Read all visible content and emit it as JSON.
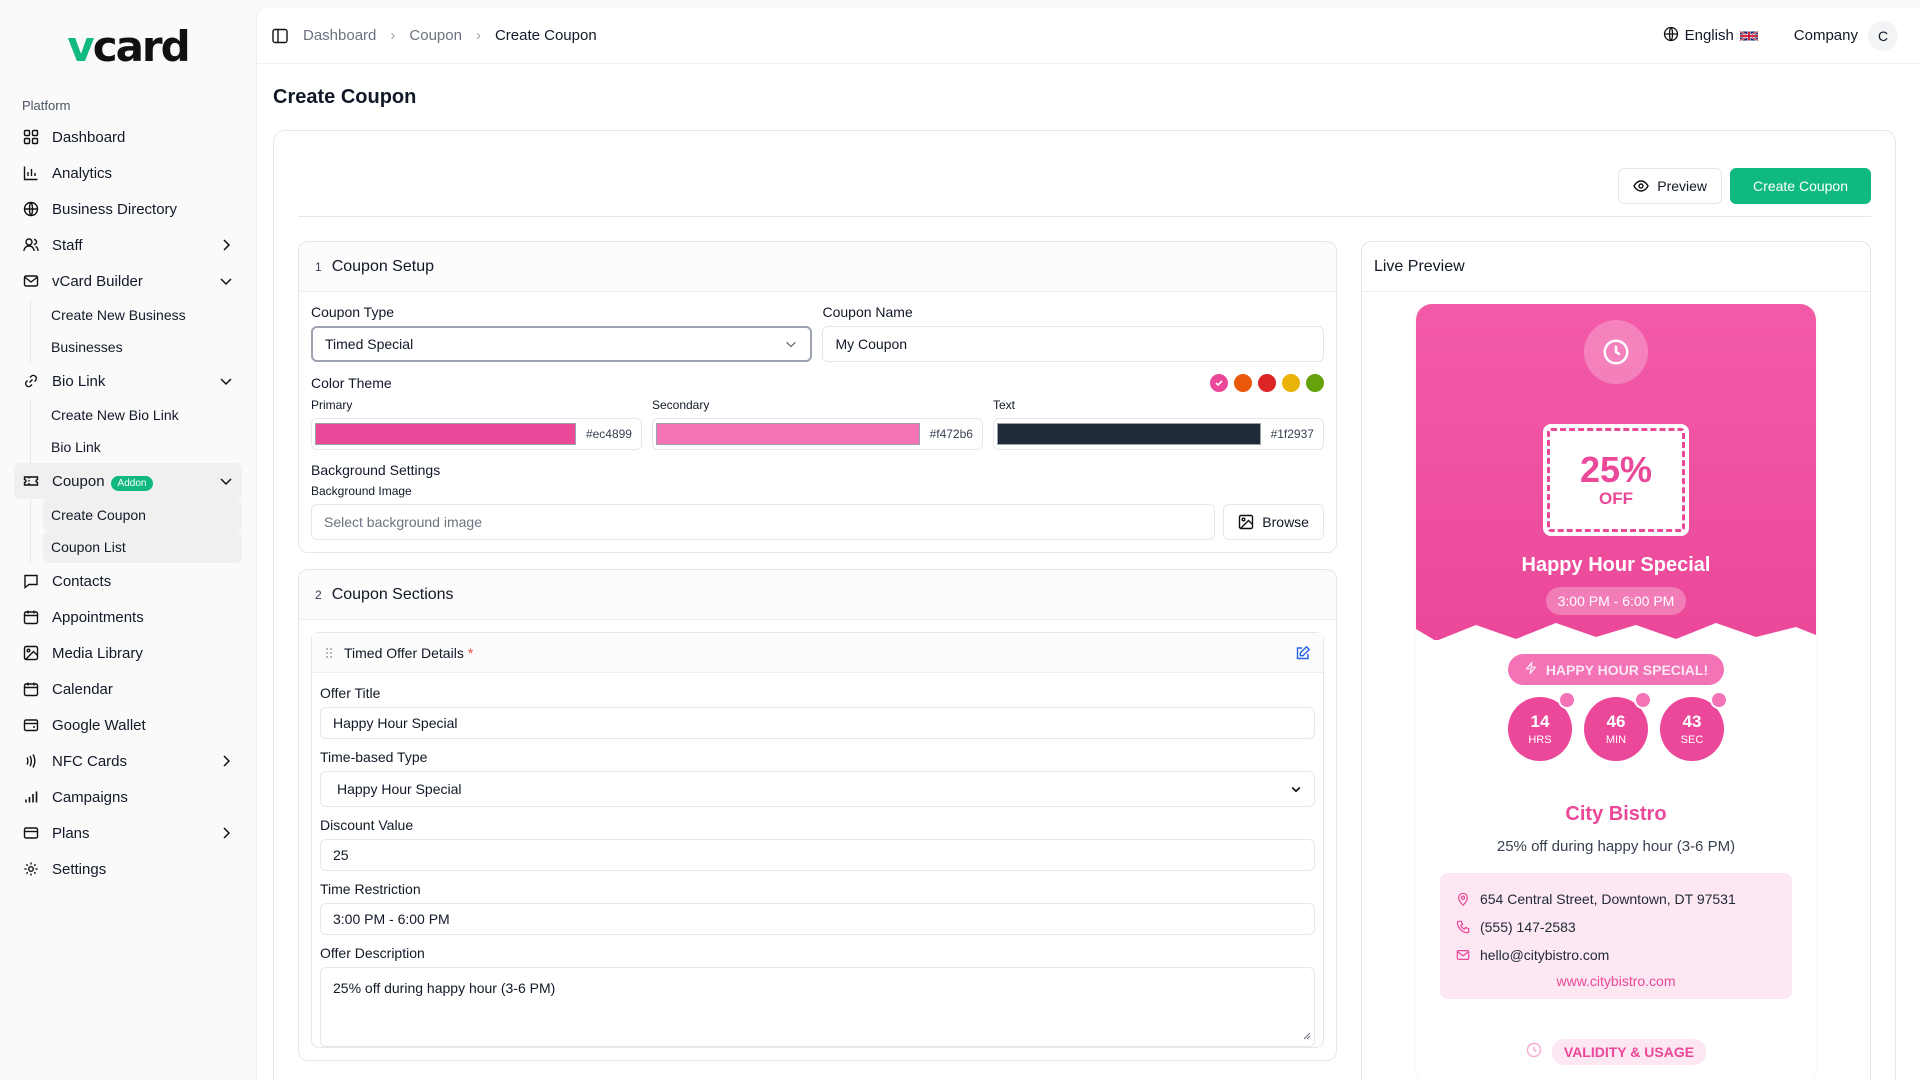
{
  "brand": {
    "logo_v": "v",
    "logo_rest": "card",
    "accent": "#10b981"
  },
  "sidebar": {
    "section_label": "Platform",
    "items": [
      {
        "label": "Dashboard",
        "icon": "grid-icon"
      },
      {
        "label": "Analytics",
        "icon": "bar-chart-icon"
      },
      {
        "label": "Business Directory",
        "icon": "globe-icon"
      },
      {
        "label": "Staff",
        "icon": "users-icon"
      },
      {
        "label": "vCard Builder",
        "icon": "mail-icon"
      },
      {
        "label": "Bio Link",
        "icon": "link-icon"
      },
      {
        "label": "Coupon",
        "icon": "ticket-icon",
        "badge": "Addon"
      },
      {
        "label": "Contacts",
        "icon": "message-icon"
      },
      {
        "label": "Appointments",
        "icon": "calendar-icon"
      },
      {
        "label": "Media Library",
        "icon": "image-icon"
      },
      {
        "label": "Calendar",
        "icon": "calendar-icon"
      },
      {
        "label": "Google Wallet",
        "icon": "wallet-icon"
      },
      {
        "label": "NFC Cards",
        "icon": "nfc-icon"
      },
      {
        "label": "Campaigns",
        "icon": "signal-icon"
      },
      {
        "label": "Plans",
        "icon": "card-icon"
      },
      {
        "label": "Settings",
        "icon": "gear-icon"
      }
    ],
    "vcard_sub": [
      "Create New Business",
      "Businesses"
    ],
    "biolink_sub": [
      "Create New Bio Link",
      "Bio Link"
    ],
    "coupon_sub": [
      "Create Coupon",
      "Coupon List"
    ]
  },
  "topbar": {
    "breadcrumbs": [
      "Dashboard",
      "Coupon",
      "Create Coupon"
    ],
    "language": "English",
    "company": "Company",
    "avatar_initial": "C"
  },
  "page": {
    "title": "Create Coupon"
  },
  "actions": {
    "preview": "Preview",
    "create": "Create Coupon"
  },
  "setup": {
    "step": "1",
    "title": "Coupon Setup",
    "type_label": "Coupon Type",
    "type_value": "Timed Special",
    "name_label": "Coupon Name",
    "name_value": "My Coupon",
    "theme_label": "Color Theme",
    "swatches": [
      "#ec4899",
      "#ea580c",
      "#dc2626",
      "#eab308",
      "#65a30d"
    ],
    "primary_label": "Primary",
    "primary_hex": "#ec4899",
    "secondary_label": "Secondary",
    "secondary_hex": "#f472b6",
    "text_label": "Text",
    "text_hex": "#1f2937",
    "bg_settings_label": "Background Settings",
    "bg_image_label": "Background Image",
    "bg_placeholder": "Select background image",
    "browse": "Browse"
  },
  "sections": {
    "step": "2",
    "title": "Coupon Sections",
    "sub_title": "Timed Offer Details",
    "required_mark": "*",
    "offer_title_label": "Offer Title",
    "offer_title_value": "Happy Hour Special",
    "time_type_label": "Time-based Type",
    "time_type_value": "Happy Hour Special",
    "discount_label": "Discount Value",
    "discount_value": "25",
    "restriction_label": "Time Restriction",
    "restriction_value": "3:00 PM - 6:00 PM",
    "desc_label": "Offer Description",
    "desc_value": "25% off during happy hour (3-6 PM)"
  },
  "preview": {
    "title": "Live Preview",
    "discount": "25%",
    "off": "OFF",
    "offer_title": "Happy Hour Special",
    "time": "3:00 PM - 6:00 PM",
    "badge": "HAPPY HOUR SPECIAL!",
    "countdown": [
      {
        "num": "14",
        "unit": "HRS"
      },
      {
        "num": "46",
        "unit": "MIN"
      },
      {
        "num": "43",
        "unit": "SEC"
      }
    ],
    "business": "City Bistro",
    "desc": "25% off during happy hour (3-6 PM)",
    "address": "654 Central Street, Downtown, DT 97531",
    "phone": "(555) 147-2583",
    "email": "hello@citybistro.com",
    "website": "www.citybistro.com",
    "validity": "VALIDITY & USAGE"
  }
}
